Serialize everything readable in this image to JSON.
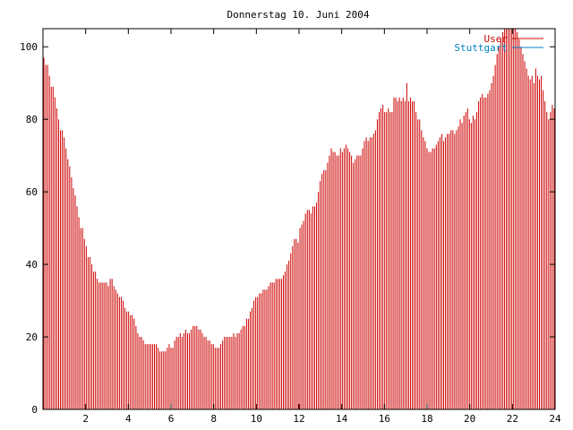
{
  "chart_data": {
    "type": "bar",
    "title": "Donnerstag 10. Juni 2004",
    "xlabel": "",
    "ylabel": "",
    "xlim": [
      0,
      24
    ],
    "ylim": [
      0,
      105
    ],
    "x_ticks": [
      2,
      4,
      6,
      8,
      10,
      12,
      14,
      16,
      18,
      20,
      22,
      24
    ],
    "y_ticks": [
      0,
      20,
      40,
      60,
      80,
      100
    ],
    "grid": false,
    "legend_position": "top-right",
    "series": [
      {
        "name": "User",
        "color": "#cc0000",
        "x_start": 0,
        "x_end": 24,
        "values": [
          97,
          95,
          95,
          92,
          89,
          89,
          86,
          83,
          80,
          77,
          77,
          75,
          72,
          69,
          67,
          64,
          61,
          59,
          56,
          53,
          50,
          50,
          47,
          45,
          42,
          42,
          40,
          38,
          38,
          36,
          35,
          35,
          35,
          35,
          35,
          34,
          36,
          36,
          34,
          33,
          32,
          31,
          31,
          30,
          28,
          27,
          27,
          26,
          26,
          25,
          23,
          21,
          20,
          20,
          19,
          18,
          18,
          18,
          18,
          18,
          18,
          18,
          17,
          16,
          16,
          16,
          16,
          17,
          18,
          17,
          17,
          19,
          20,
          20,
          21,
          20,
          21,
          22,
          21,
          21,
          22,
          23,
          23,
          23,
          22,
          22,
          21,
          20,
          20,
          19,
          19,
          18,
          18,
          17,
          17,
          17,
          18,
          19,
          20,
          20,
          20,
          20,
          20,
          21,
          20,
          21,
          21,
          22,
          23,
          23,
          25,
          25,
          27,
          28,
          30,
          31,
          31,
          32,
          32,
          33,
          33,
          33,
          34,
          35,
          35,
          35,
          36,
          36,
          36,
          36,
          37,
          38,
          40,
          41,
          43,
          45,
          47,
          47,
          46,
          50,
          51,
          52,
          54,
          55,
          55,
          54,
          56,
          56,
          57,
          60,
          63,
          65,
          66,
          66,
          68,
          70,
          72,
          71,
          71,
          70,
          70,
          72,
          71,
          72,
          73,
          72,
          71,
          70,
          68,
          69,
          70,
          70,
          70,
          72,
          74,
          75,
          74,
          75,
          75,
          76,
          77,
          80,
          82,
          83,
          84,
          82,
          82,
          83,
          82,
          82,
          86,
          86,
          85,
          86,
          85,
          86,
          85,
          90,
          85,
          86,
          85,
          85,
          82,
          80,
          80,
          77,
          75,
          74,
          72,
          71,
          71,
          72,
          72,
          73,
          74,
          75,
          76,
          74,
          75,
          76,
          76,
          77,
          77,
          76,
          77,
          78,
          80,
          79,
          81,
          82,
          83,
          80,
          79,
          81,
          80,
          82,
          85,
          86,
          87,
          86,
          86,
          87,
          88,
          90,
          92,
          95,
          98,
          100,
          102,
          104,
          105,
          105,
          106,
          106,
          106,
          106,
          105,
          104,
          102,
          100,
          98,
          96,
          94,
          92,
          91,
          92,
          90,
          94,
          92,
          91,
          92,
          88,
          85,
          82,
          80,
          82,
          84,
          83
        ]
      },
      {
        "name": "Stuttgart",
        "color": "#0080c0",
        "values": []
      }
    ]
  }
}
